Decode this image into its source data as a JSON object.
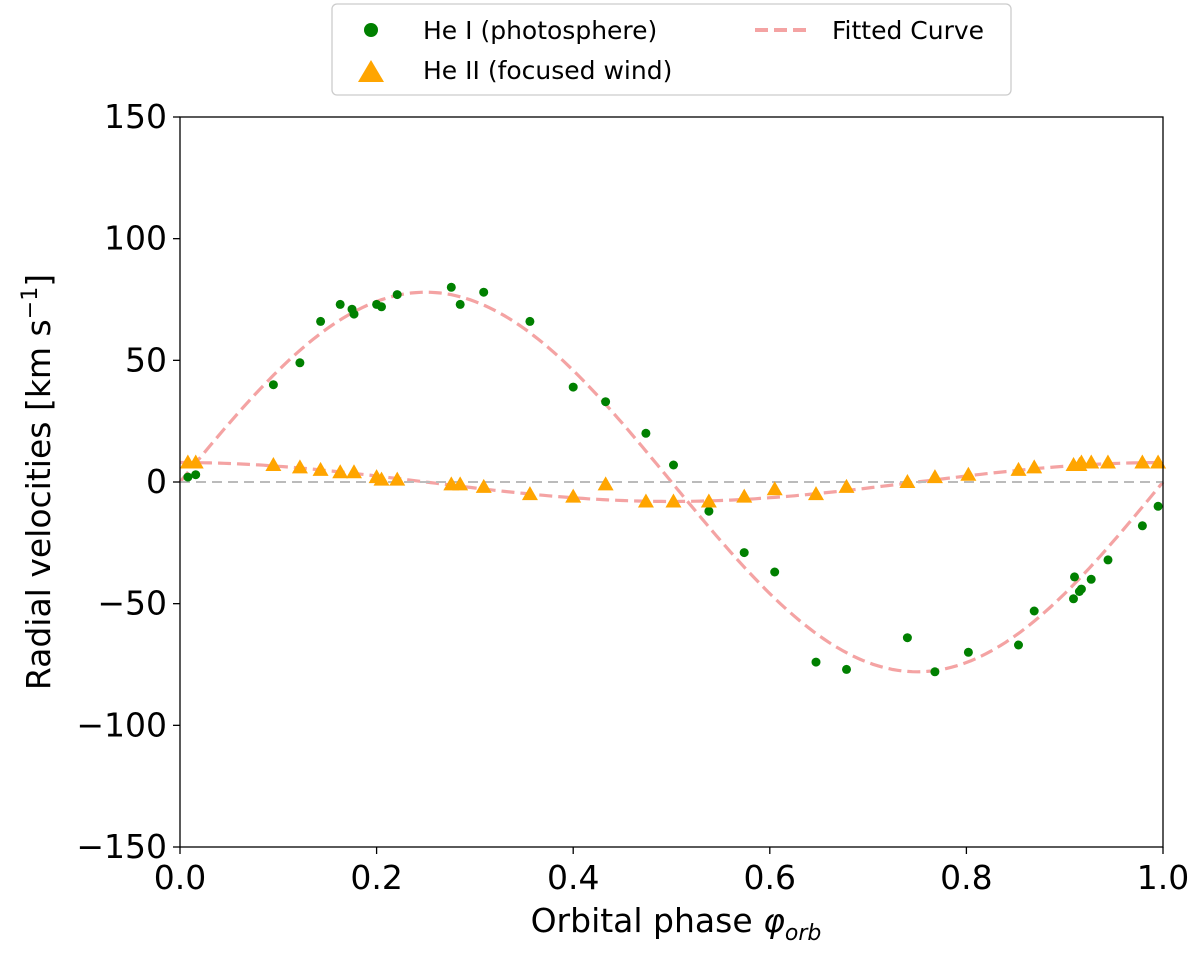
{
  "chart_data": {
    "type": "scatter",
    "title": "",
    "xlabel": "Orbital phase",
    "xlabel_symbol": "φ",
    "xlabel_subscript": "orb",
    "ylabel": "Radial velocities [km s",
    "ylabel_sup": "−1",
    "ylabel_end": "]",
    "xlim": [
      0.0,
      1.0
    ],
    "ylim": [
      -150,
      150
    ],
    "xticks": [
      0.0,
      0.2,
      0.4,
      0.6,
      0.8,
      1.0
    ],
    "xtick_labels": [
      "0.0",
      "0.2",
      "0.4",
      "0.6",
      "0.8",
      "1.0"
    ],
    "yticks": [
      -150,
      -100,
      -50,
      0,
      50,
      100,
      150
    ],
    "ytick_labels": [
      "−150",
      "−100",
      "−50",
      "0",
      "50",
      "100",
      "150"
    ],
    "grid": false,
    "legend_position": "top-center, above plot",
    "legend": [
      {
        "label": "He I (photosphere)",
        "marker": "circle",
        "color": "#008000"
      },
      {
        "label": "He II (focused wind)",
        "marker": "triangle",
        "color": "#ffa500"
      },
      {
        "label": "Fitted Curve",
        "marker": "dashed-line",
        "color": "#f4a3a3"
      }
    ],
    "reference_line": {
      "y": 0,
      "style": "dashed",
      "color": "#bbbbbb"
    },
    "series": [
      {
        "name": "He I (photosphere)",
        "marker": "circle",
        "color": "#008000",
        "points": [
          [
            0.008,
            2
          ],
          [
            0.016,
            3
          ],
          [
            0.095,
            40
          ],
          [
            0.122,
            49
          ],
          [
            0.143,
            66
          ],
          [
            0.163,
            73
          ],
          [
            0.175,
            71
          ],
          [
            0.177,
            69
          ],
          [
            0.2,
            73
          ],
          [
            0.205,
            72
          ],
          [
            0.221,
            77
          ],
          [
            0.276,
            80
          ],
          [
            0.285,
            73
          ],
          [
            0.309,
            78
          ],
          [
            0.356,
            66
          ],
          [
            0.4,
            39
          ],
          [
            0.433,
            33
          ],
          [
            0.474,
            20
          ],
          [
            0.502,
            7
          ],
          [
            0.538,
            -12
          ],
          [
            0.574,
            -29
          ],
          [
            0.605,
            -37
          ],
          [
            0.647,
            -74
          ],
          [
            0.678,
            -77
          ],
          [
            0.74,
            -64
          ],
          [
            0.768,
            -78
          ],
          [
            0.802,
            -70
          ],
          [
            0.853,
            -67
          ],
          [
            0.869,
            -53
          ],
          [
            0.909,
            -48
          ],
          [
            0.91,
            -39
          ],
          [
            0.915,
            -45
          ],
          [
            0.917,
            -44
          ],
          [
            0.927,
            -40
          ],
          [
            0.944,
            -32
          ],
          [
            0.979,
            -18
          ],
          [
            0.995,
            -10
          ]
        ]
      },
      {
        "name": "He II (focused wind)",
        "marker": "triangle",
        "color": "#ffa500",
        "points": [
          [
            0.008,
            8
          ],
          [
            0.016,
            8
          ],
          [
            0.095,
            7
          ],
          [
            0.122,
            6
          ],
          [
            0.143,
            5
          ],
          [
            0.163,
            4
          ],
          [
            0.177,
            4
          ],
          [
            0.2,
            2
          ],
          [
            0.205,
            1
          ],
          [
            0.221,
            1
          ],
          [
            0.276,
            -1
          ],
          [
            0.285,
            -1
          ],
          [
            0.309,
            -2
          ],
          [
            0.356,
            -5
          ],
          [
            0.4,
            -6
          ],
          [
            0.433,
            -1
          ],
          [
            0.474,
            -8
          ],
          [
            0.502,
            -8
          ],
          [
            0.538,
            -8
          ],
          [
            0.574,
            -6
          ],
          [
            0.605,
            -3
          ],
          [
            0.647,
            -5
          ],
          [
            0.678,
            -2
          ],
          [
            0.74,
            0
          ],
          [
            0.768,
            2
          ],
          [
            0.802,
            3
          ],
          [
            0.853,
            5
          ],
          [
            0.869,
            6
          ],
          [
            0.909,
            7
          ],
          [
            0.915,
            7
          ],
          [
            0.917,
            8
          ],
          [
            0.927,
            8
          ],
          [
            0.944,
            8
          ],
          [
            0.979,
            8
          ],
          [
            0.995,
            8
          ]
        ]
      }
    ],
    "fitted_curves": [
      {
        "name": "Fitted Curve",
        "form": "A*sin(2*pi*phase)+offset",
        "amplitude": 78,
        "offset": 0,
        "phase_range": [
          0.0,
          1.0
        ]
      },
      {
        "form": "A*cos(2*pi*phase)+offset",
        "amplitude": 8,
        "offset": 0,
        "phase_range": [
          0.0,
          1.0
        ]
      }
    ]
  }
}
